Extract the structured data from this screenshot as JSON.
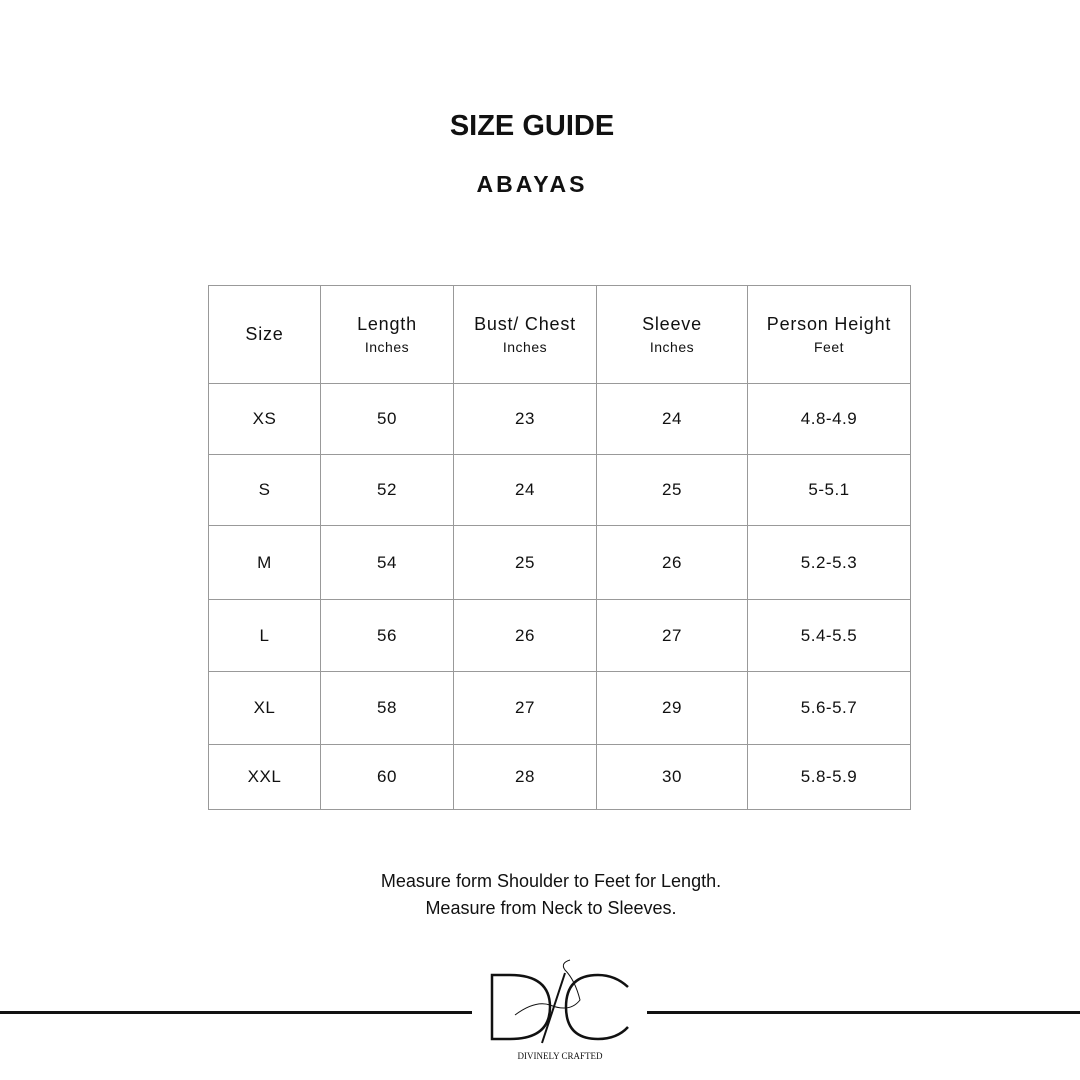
{
  "header": {
    "title": "SIZE GUIDE",
    "subtitle": "ABAYAS"
  },
  "table": {
    "columns": [
      {
        "label": "Size",
        "unit": ""
      },
      {
        "label": "Length",
        "unit": "Inches"
      },
      {
        "label": "Bust/ Chest",
        "unit": "Inches"
      },
      {
        "label": "Sleeve",
        "unit": "Inches"
      },
      {
        "label": "Person Height",
        "unit": "Feet"
      }
    ],
    "rows": [
      [
        "XS",
        "50",
        "23",
        "24",
        "4.8-4.9"
      ],
      [
        "S",
        "52",
        "24",
        "25",
        "5-5.1"
      ],
      [
        "M",
        "54",
        "25",
        "26",
        "5.2-5.3"
      ],
      [
        "L",
        "56",
        "26",
        "27",
        "5.4-5.5"
      ],
      [
        "XL",
        "58",
        "27",
        "29",
        "5.6-5.7"
      ],
      [
        "XXL",
        "60",
        "28",
        "30",
        "5.8-5.9"
      ]
    ]
  },
  "notes": [
    "Measure form Shoulder to Feet for Length.",
    "Measure from Neck to Sleeves."
  ],
  "logo": {
    "monogram": "D/C",
    "text": "DIVINELY CRAFTED"
  }
}
